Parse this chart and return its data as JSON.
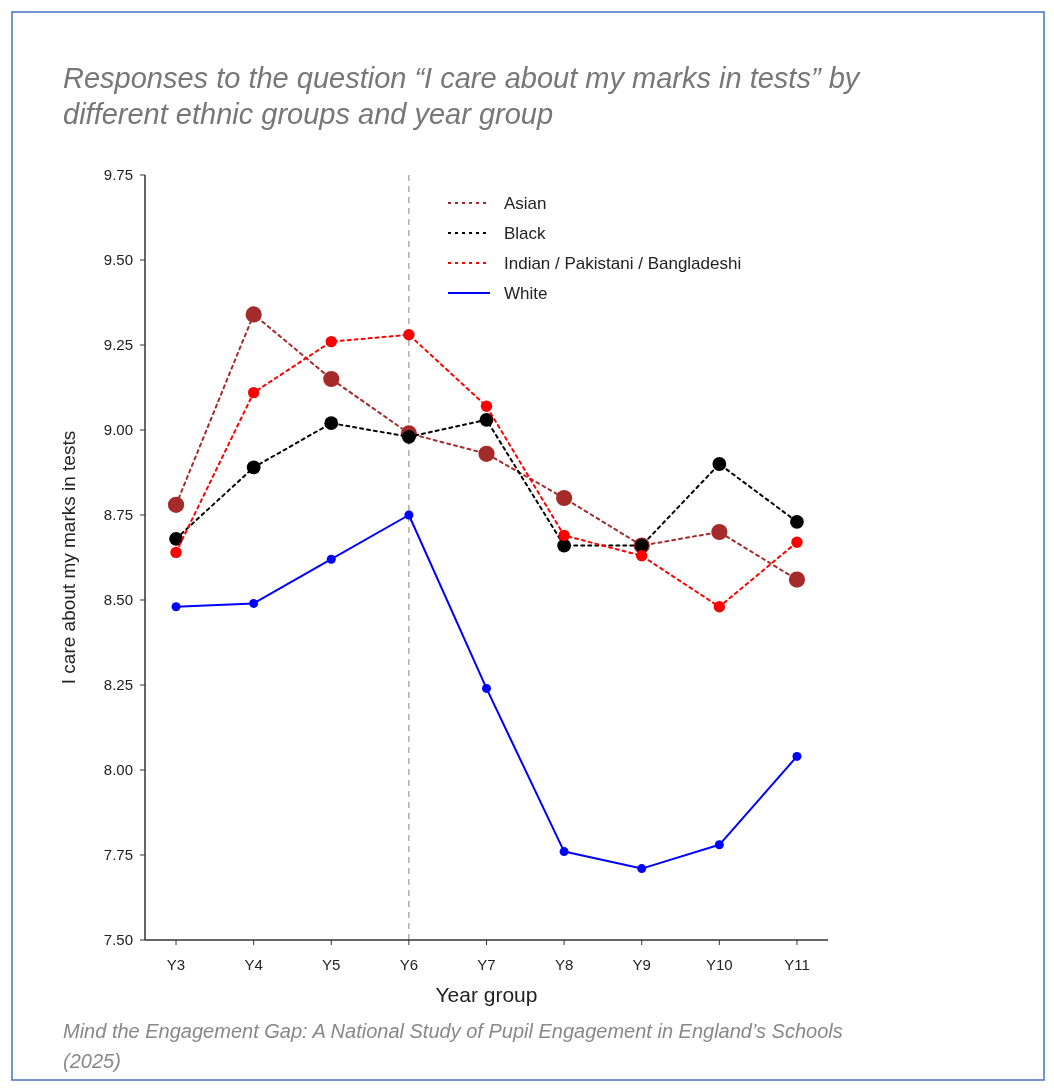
{
  "chart_data": {
    "type": "line",
    "title": "Responses to the question “I care about my marks in tests” by different ethnic groups and year group",
    "xlabel": "Year group",
    "ylabel": "I care about my marks in tests",
    "categories": [
      "Y3",
      "Y4",
      "Y5",
      "Y6",
      "Y7",
      "Y8",
      "Y9",
      "Y10",
      "Y11"
    ],
    "series": [
      {
        "name": "Asian",
        "color": "#a52a2a",
        "line_style": "dotted",
        "values": [
          8.78,
          9.34,
          9.15,
          8.99,
          8.93,
          8.8,
          8.66,
          8.7,
          8.56
        ]
      },
      {
        "name": "Black",
        "color": "#000000",
        "line_style": "dotted",
        "values": [
          8.68,
          8.89,
          9.02,
          8.98,
          9.03,
          8.66,
          8.66,
          8.9,
          8.73
        ]
      },
      {
        "name": "Indian / Pakistani / Bangladeshi",
        "color": "#ff0000",
        "line_style": "dotted",
        "values": [
          8.64,
          9.11,
          9.26,
          9.28,
          9.07,
          8.69,
          8.63,
          8.48,
          8.67
        ]
      },
      {
        "name": "White",
        "color": "#0000ff",
        "line_style": "solid",
        "values": [
          8.48,
          8.49,
          8.62,
          8.75,
          8.24,
          7.76,
          7.71,
          7.78,
          8.04
        ]
      }
    ],
    "ylim": [
      7.5,
      9.75
    ],
    "yticks": [
      {
        "value": 7.5,
        "label": "7.50"
      },
      {
        "value": 7.75,
        "label": "7.75"
      },
      {
        "value": 8,
        "label": "8.00"
      },
      {
        "value": 8.25,
        "label": "8.25"
      },
      {
        "value": 8.5,
        "label": "8.50"
      },
      {
        "value": 8.75,
        "label": "8.75"
      },
      {
        "value": 9,
        "label": "9.00"
      },
      {
        "value": 9.25,
        "label": "9.25"
      },
      {
        "value": 9.5,
        "label": "9.50"
      },
      {
        "value": 9.75,
        "label": "9.75"
      }
    ],
    "ref_lines": [
      {
        "axis": "x",
        "value": "Y6",
        "color": "#999999",
        "line_style": "dashed"
      }
    ],
    "marker": "circle",
    "grid": false,
    "legend": "top right",
    "annotations": [
      "Mind the Engagement Gap: A National Study of Pupil Engagement in England’s Schools (2025)"
    ]
  }
}
